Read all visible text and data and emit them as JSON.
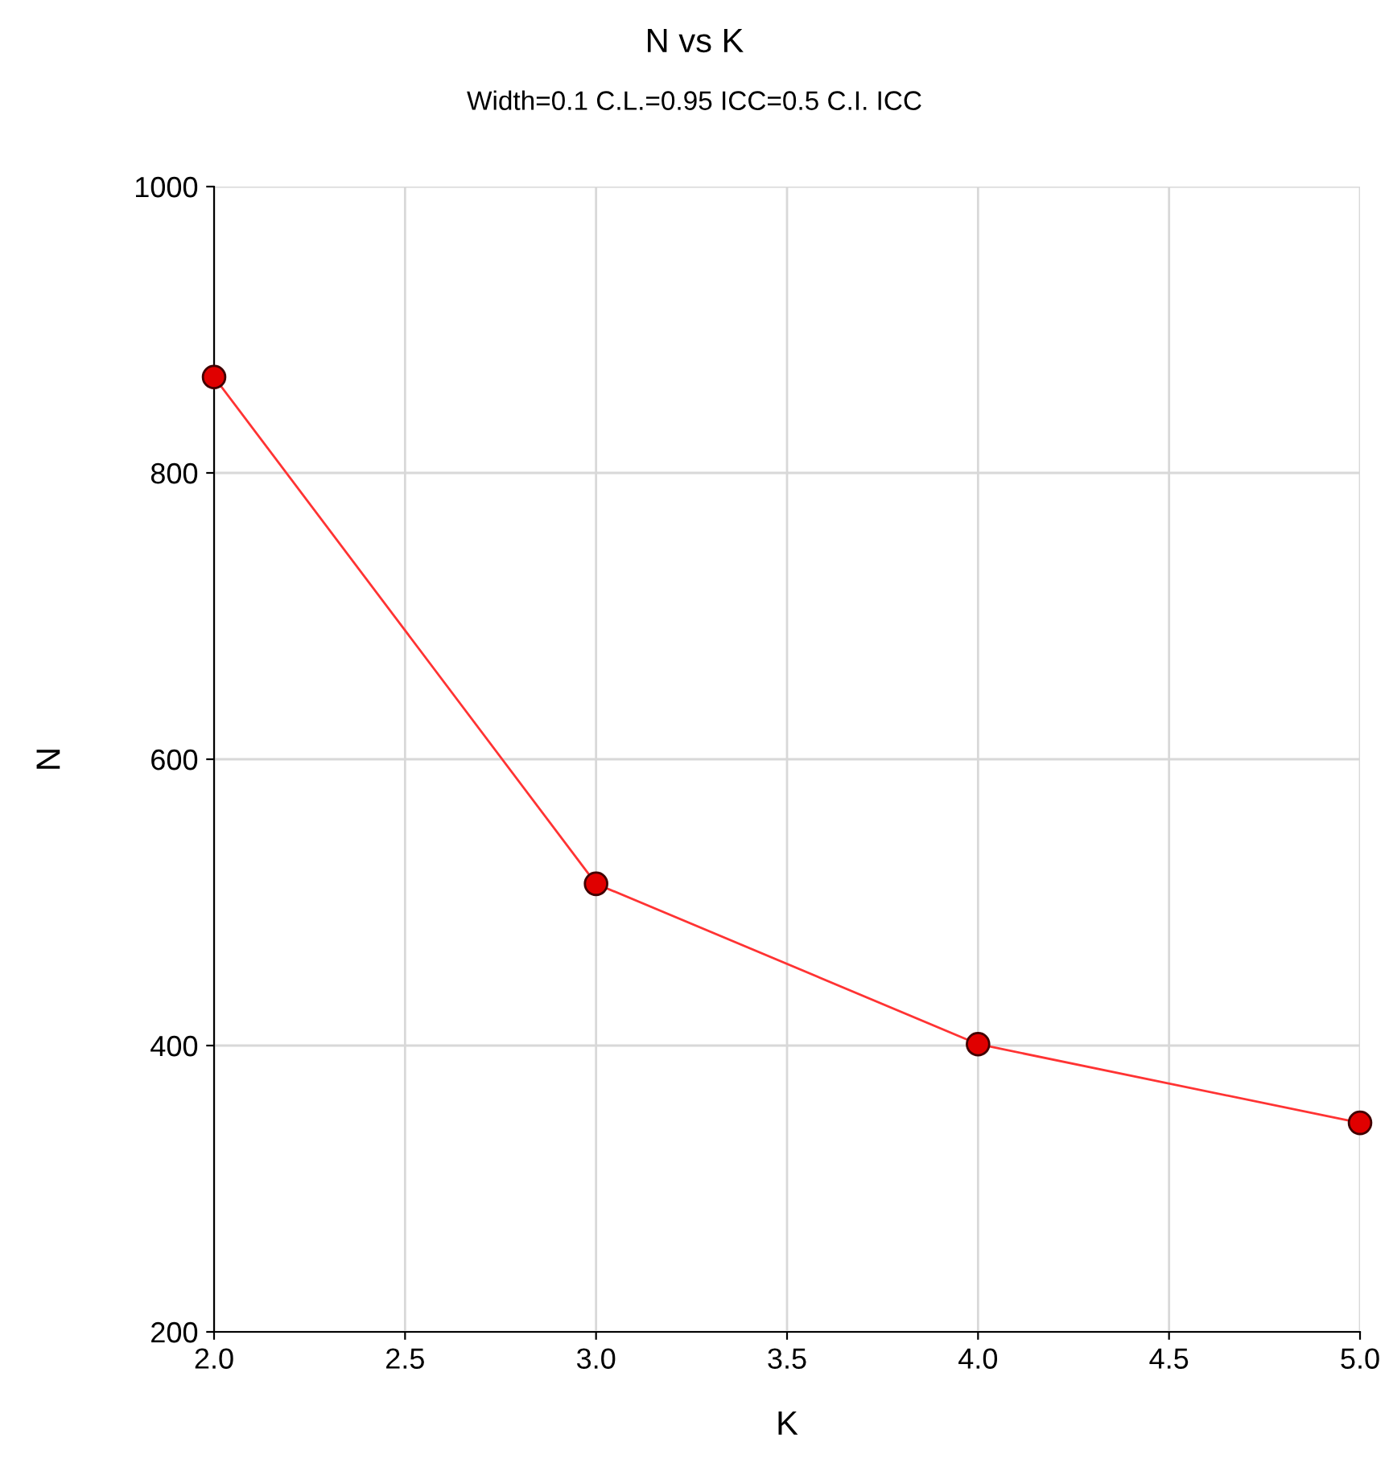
{
  "chart_data": {
    "type": "line",
    "title": "N vs K",
    "subtitle": "Width=0.1 C.L.=0.95 ICC=0.5 C.I. ICC",
    "xlabel": "K",
    "ylabel": "N",
    "x": [
      2.0,
      3.0,
      4.0,
      5.0
    ],
    "series": [
      {
        "color": "#ff3333",
        "values": [
          867,
          513,
          401,
          346
        ]
      }
    ],
    "xlim": [
      2.0,
      5.0
    ],
    "xticks": [
      {
        "value": 2.0,
        "label": "2.0"
      },
      {
        "value": 2.5,
        "label": "2.5"
      },
      {
        "value": 3.0,
        "label": "3.0"
      },
      {
        "value": 3.5,
        "label": "3.5"
      },
      {
        "value": 4.0,
        "label": "4.0"
      },
      {
        "value": 4.5,
        "label": "4.5"
      },
      {
        "value": 5.0,
        "label": "5.0"
      }
    ],
    "ylim": [
      200,
      1000
    ],
    "yticks": [
      200,
      400,
      600,
      800,
      1000
    ],
    "grid": true,
    "marker": "circle",
    "line_style": "solid"
  }
}
